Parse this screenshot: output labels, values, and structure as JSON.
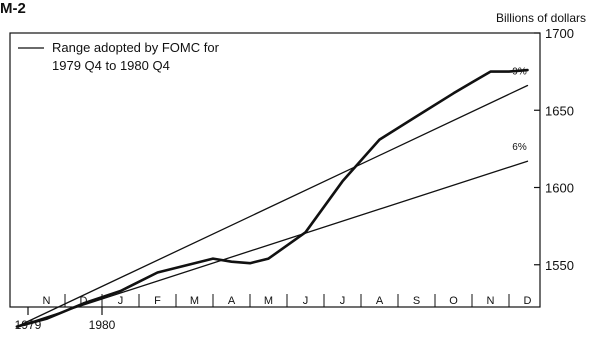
{
  "chart_data": {
    "type": "line",
    "title": "M-2",
    "ylabel": "Billions of dollars",
    "ylim": [
      1500,
      1700
    ],
    "y_ticks": [
      1550,
      1600,
      1650,
      1700
    ],
    "y_tick_labels": [
      "1550",
      "1600",
      "1650",
      "1700"
    ],
    "x_month_labels": [
      "N",
      "D",
      "J",
      "F",
      "M",
      "A",
      "M",
      "J",
      "J",
      "A",
      "S",
      "O",
      "N",
      "D"
    ],
    "x_year_labels": [
      "1979",
      "1980"
    ],
    "legend": [
      {
        "label_lines": [
          "Range adopted by FOMC for",
          "1979 Q4 to 1980 Q4"
        ]
      }
    ],
    "series": [
      {
        "role": "actual",
        "x": [
          -0.3,
          0.5,
          1.5,
          2.5,
          3.5,
          4.5,
          5.0,
          5.5,
          6.0,
          6.5,
          7.5,
          8.5,
          9.5,
          10.5,
          11.5,
          12.0,
          12.5,
          13.0,
          13.5
        ],
        "values": [
          1510,
          1515,
          1525,
          1533,
          1545,
          1551,
          1554,
          1552,
          1551,
          1554,
          1571,
          1604,
          1631,
          1646,
          1661,
          1668,
          1675,
          1675,
          1676
        ]
      },
      {
        "role": "range-upper",
        "label": "9%",
        "x": [
          -0.3,
          13.5
        ],
        "values": [
          1510,
          1666
        ]
      },
      {
        "role": "range-lower",
        "label": "6%",
        "x": [
          -0.3,
          13.5
        ],
        "values": [
          1510,
          1617
        ]
      }
    ]
  }
}
